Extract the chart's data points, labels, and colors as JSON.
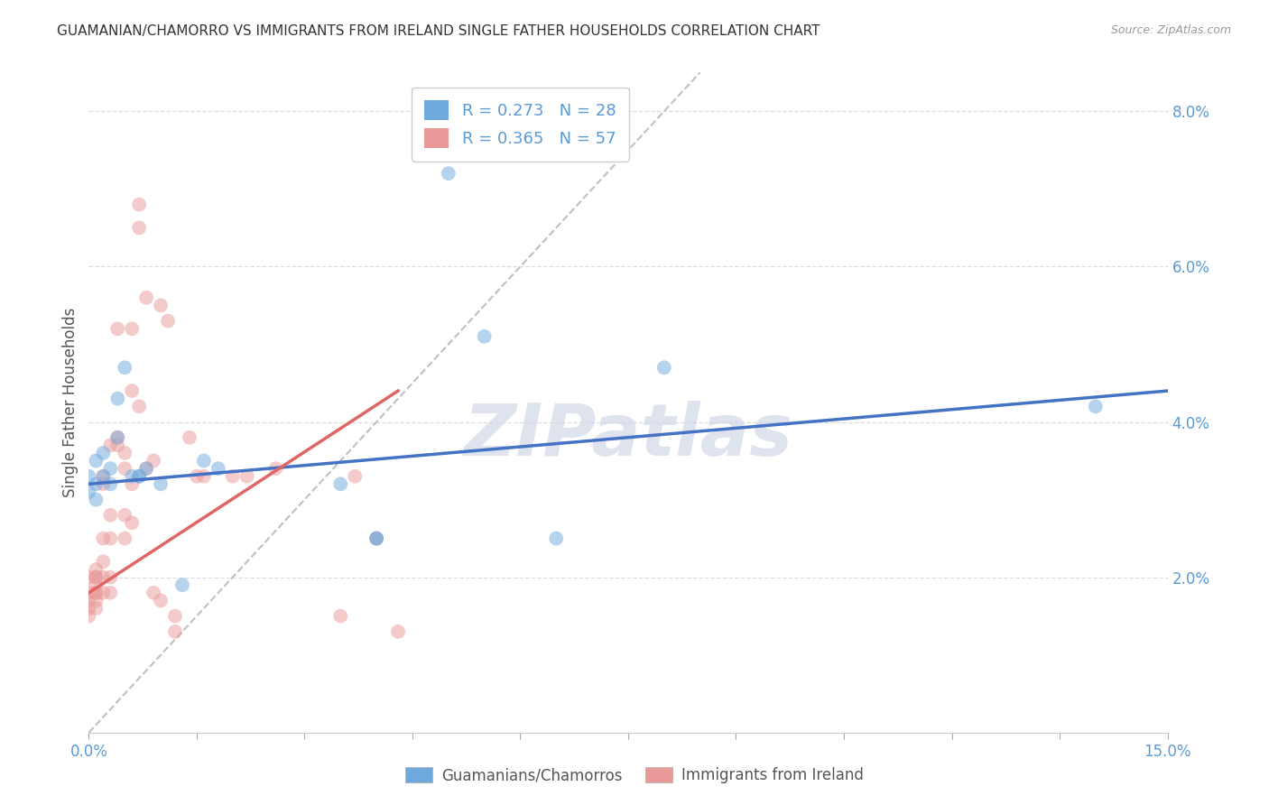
{
  "title": "GUAMANIAN/CHAMORRO VS IMMIGRANTS FROM IRELAND SINGLE FATHER HOUSEHOLDS CORRELATION CHART",
  "source": "Source: ZipAtlas.com",
  "xlabel_label": "Guamanians/Chamorros",
  "xlabel_label2": "Immigrants from Ireland",
  "ylabel": "Single Father Households",
  "xlim": [
    0.0,
    0.15
  ],
  "ylim": [
    0.0,
    0.085
  ],
  "blue_R": 0.273,
  "blue_N": 28,
  "pink_R": 0.365,
  "pink_N": 57,
  "blue_color": "#6fa8dc",
  "pink_color": "#ea9999",
  "trendline_blue_color": "#4472c4",
  "trendline_pink_color": "#e06666",
  "diagonal_color": "#c0c0c0",
  "blue_points_x": [
    0.0,
    0.0,
    0.001,
    0.001,
    0.001,
    0.002,
    0.002,
    0.003,
    0.003,
    0.004,
    0.004,
    0.005,
    0.006,
    0.007,
    0.007,
    0.008,
    0.01,
    0.013,
    0.016,
    0.018,
    0.035,
    0.04,
    0.04,
    0.05,
    0.055,
    0.065,
    0.08,
    0.14
  ],
  "blue_points_y": [
    0.033,
    0.031,
    0.032,
    0.035,
    0.03,
    0.033,
    0.036,
    0.032,
    0.034,
    0.038,
    0.043,
    0.047,
    0.033,
    0.033,
    0.033,
    0.034,
    0.032,
    0.019,
    0.035,
    0.034,
    0.032,
    0.025,
    0.025,
    0.072,
    0.051,
    0.025,
    0.047,
    0.042
  ],
  "pink_points_x": [
    0.0,
    0.0,
    0.0,
    0.0,
    0.0,
    0.001,
    0.001,
    0.001,
    0.001,
    0.001,
    0.001,
    0.001,
    0.001,
    0.002,
    0.002,
    0.002,
    0.002,
    0.002,
    0.002,
    0.003,
    0.003,
    0.003,
    0.003,
    0.003,
    0.004,
    0.004,
    0.004,
    0.005,
    0.005,
    0.005,
    0.005,
    0.006,
    0.006,
    0.006,
    0.006,
    0.007,
    0.007,
    0.007,
    0.008,
    0.008,
    0.009,
    0.009,
    0.01,
    0.01,
    0.011,
    0.012,
    0.012,
    0.014,
    0.015,
    0.016,
    0.02,
    0.022,
    0.026,
    0.035,
    0.037,
    0.04,
    0.043
  ],
  "pink_points_y": [
    0.02,
    0.018,
    0.017,
    0.016,
    0.015,
    0.021,
    0.02,
    0.02,
    0.019,
    0.018,
    0.018,
    0.017,
    0.016,
    0.033,
    0.032,
    0.025,
    0.022,
    0.02,
    0.018,
    0.037,
    0.028,
    0.025,
    0.02,
    0.018,
    0.052,
    0.038,
    0.037,
    0.036,
    0.034,
    0.028,
    0.025,
    0.052,
    0.044,
    0.032,
    0.027,
    0.068,
    0.065,
    0.042,
    0.056,
    0.034,
    0.035,
    0.018,
    0.055,
    0.017,
    0.053,
    0.015,
    0.013,
    0.038,
    0.033,
    0.033,
    0.033,
    0.033,
    0.034,
    0.015,
    0.033,
    0.025,
    0.013
  ],
  "blue_trend_x": [
    0.0,
    0.15
  ],
  "blue_trend_y": [
    0.032,
    0.044
  ],
  "pink_trend_x": [
    0.0,
    0.043
  ],
  "pink_trend_y": [
    0.018,
    0.044
  ],
  "marker_size": 130,
  "alpha": 0.5,
  "background_color": "#ffffff",
  "grid_color": "#dddddd",
  "tick_color": "#5b9bd5",
  "watermark_text": "ZIPatlas",
  "watermark_color": "#d0d8e8"
}
